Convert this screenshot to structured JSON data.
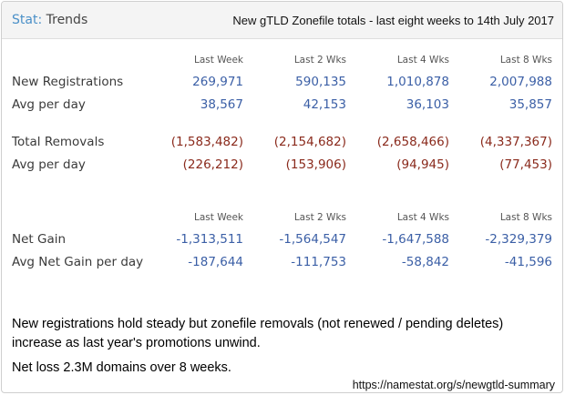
{
  "header": {
    "stat_prefix": "Stat:",
    "stat_title": "Trends",
    "subtitle": "New gTLD Zonefile totals - last eight weeks to 14th July 2017"
  },
  "columns": [
    "Last Week",
    "Last 2 Wks",
    "Last 4 Wks",
    "Last 8 Wks"
  ],
  "registrations": {
    "new_label": "New Registrations",
    "new_values": [
      "269,971",
      "590,135",
      "1,010,878",
      "2,007,988"
    ],
    "avg_label": "Avg per day",
    "avg_values": [
      "38,567",
      "42,153",
      "36,103",
      "35,857"
    ]
  },
  "removals": {
    "total_label": "Total Removals",
    "total_values": [
      "(1,583,482)",
      "(2,154,682)",
      "(2,658,466)",
      "(4,337,367)"
    ],
    "avg_label": "Avg per day",
    "avg_values": [
      "(226,212)",
      "(153,906)",
      "(94,945)",
      "(77,453)"
    ]
  },
  "net": {
    "gain_label": "Net Gain",
    "gain_values": [
      "-1,313,511",
      "-1,564,547",
      "-1,647,588",
      "-2,329,379"
    ],
    "avg_label": "Avg Net Gain per day",
    "avg_values": [
      "-187,644",
      "-111,753",
      "-58,842",
      "-41,596"
    ]
  },
  "notes": {
    "line1": "New registrations hold steady but zonefile removals (not renewed / pending deletes) increase as last year's promotions unwind.",
    "line2": "Net loss 2.3M domains over 8 weeks.",
    "url": "https://namestat.org/s/newgtld-summary"
  },
  "colors": {
    "accent": "#4a90c8",
    "positive": "#3b5fa6",
    "negative": "#8a2a1c"
  }
}
